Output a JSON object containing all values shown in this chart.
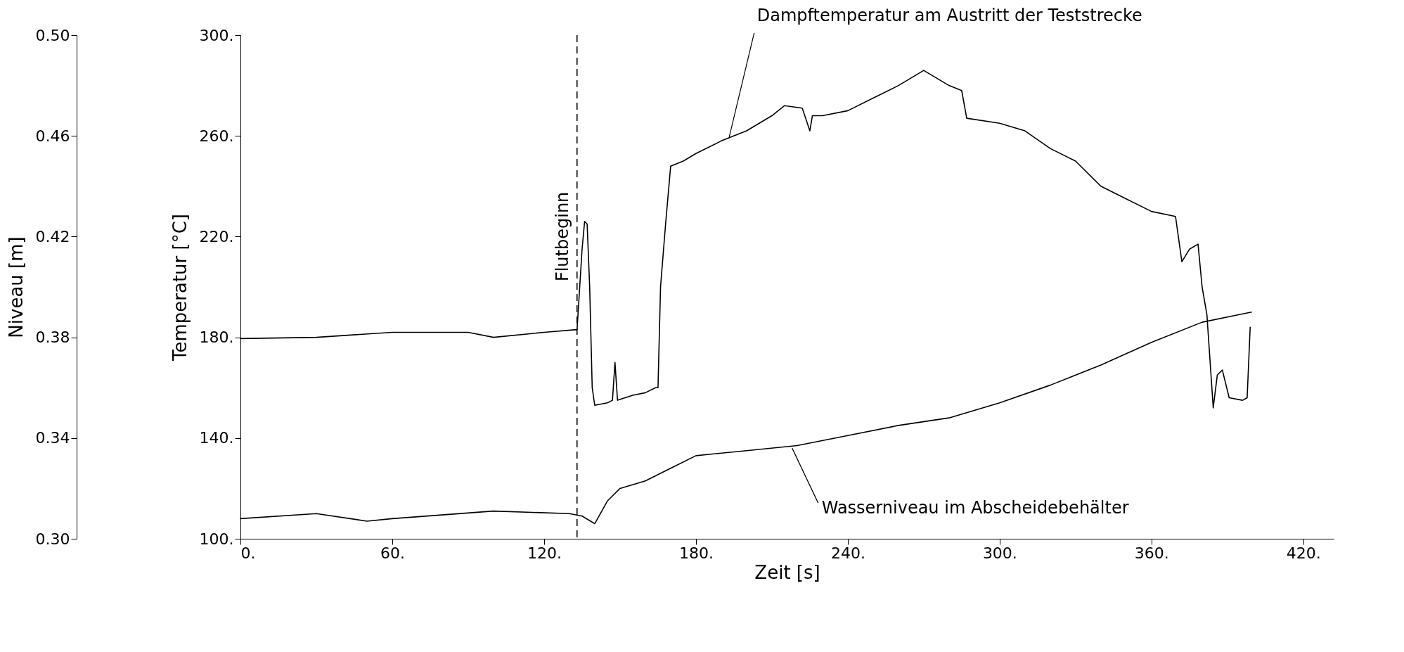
{
  "chart_data": {
    "type": "line",
    "xlabel": "Zeit [s]",
    "ylabel": "Temperatur [°C]",
    "y2label": "Niveau [m]",
    "xlim": [
      0,
      432
    ],
    "xticks": [
      {
        "value": 0,
        "label": "0."
      },
      {
        "value": 60,
        "label": "60."
      },
      {
        "value": 120,
        "label": "120."
      },
      {
        "value": 180,
        "label": "180."
      },
      {
        "value": 240,
        "label": "240."
      },
      {
        "value": 300,
        "label": "300."
      },
      {
        "value": 360,
        "label": "360."
      },
      {
        "value": 420,
        "label": "420."
      }
    ],
    "ylim": [
      100,
      300
    ],
    "yticks": [
      {
        "value": 100,
        "label": "100."
      },
      {
        "value": 140,
        "label": "140."
      },
      {
        "value": 180,
        "label": "180."
      },
      {
        "value": 220,
        "label": "220."
      },
      {
        "value": 260,
        "label": "260."
      },
      {
        "value": 300,
        "label": "300."
      }
    ],
    "y2lim": [
      0.3,
      0.5
    ],
    "y2ticks": [
      {
        "value": 0.3,
        "label": "0.30"
      },
      {
        "value": 0.34,
        "label": "0.34"
      },
      {
        "value": 0.38,
        "label": "0.38"
      },
      {
        "value": 0.42,
        "label": "0.42"
      },
      {
        "value": 0.46,
        "label": "0.46"
      },
      {
        "value": 0.5,
        "label": "0.50"
      }
    ],
    "grid": false,
    "legend": false,
    "marker": "none",
    "line_style": "solid",
    "series": [
      {
        "color": "#000000",
        "x": [
          0,
          30,
          60,
          90,
          100,
          120,
          132,
          133,
          135,
          136,
          137,
          138,
          139,
          140,
          145,
          147,
          148,
          149,
          155,
          160,
          164,
          165,
          166,
          168,
          170,
          175,
          180,
          190,
          200,
          210,
          215,
          222,
          225,
          226,
          230,
          240,
          250,
          260,
          270,
          280,
          285,
          287,
          300,
          310,
          320,
          330,
          340,
          350,
          360,
          369.5,
          372,
          375,
          378.4,
          380,
          381.9,
          384.4,
          386,
          388,
          390.7,
          396,
          397.8,
          399
        ],
        "values": [
          179.5,
          180,
          182,
          182,
          180,
          182,
          183,
          183,
          215,
          226,
          225,
          200,
          160,
          153,
          154,
          155,
          170,
          155,
          157,
          158,
          160,
          160,
          200,
          225,
          248,
          250,
          253,
          258,
          262,
          268,
          272,
          271,
          262,
          268,
          268,
          270,
          275,
          280,
          286,
          280,
          278,
          267,
          265,
          262,
          255,
          250,
          240,
          235,
          230,
          228,
          210,
          215,
          217,
          200,
          189,
          152,
          165,
          167,
          156,
          155,
          156,
          184
        ]
      },
      {
        "color": "#000000",
        "axis": "y2",
        "x": [
          0,
          30,
          50,
          60,
          100,
          130,
          135,
          140,
          145,
          150,
          160,
          170,
          180,
          200,
          220,
          240,
          260,
          280,
          300,
          320,
          340,
          360,
          380,
          399.5
        ],
        "values": [
          0.308,
          0.31,
          0.307,
          0.308,
          0.311,
          0.31,
          0.309,
          0.306,
          0.315,
          0.32,
          0.323,
          0.328,
          0.333,
          0.335,
          0.337,
          0.341,
          0.345,
          0.348,
          0.354,
          0.361,
          0.369,
          0.378,
          0.386,
          0.39
        ]
      }
    ],
    "ref_lines": [
      {
        "axis": "x",
        "value": 133,
        "label": "Flutbeginn",
        "color": "#000000",
        "line_style": "dashed"
      }
    ],
    "annotations": [
      {
        "text": "Dampftemperatur am Austritt der Teststrecke",
        "x": 193,
        "y": 259
      },
      {
        "text": "Wasserniveau im Abscheidebehälter",
        "x": 218,
        "y": 136
      }
    ]
  }
}
